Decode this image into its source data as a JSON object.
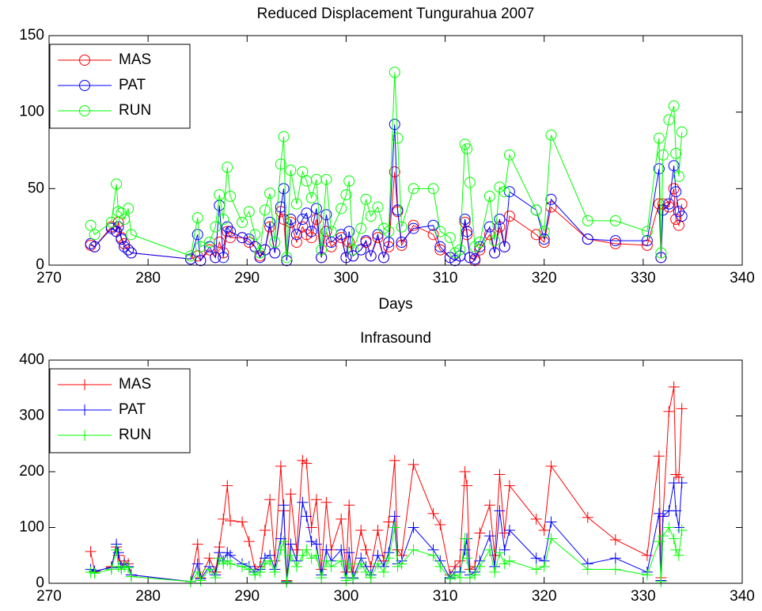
{
  "chart_data": [
    {
      "type": "line",
      "title": "Reduced Displacement Tungurahua 2007",
      "xlabel": "Days",
      "marker": "circle",
      "legend": "upper left",
      "xlim": [
        270,
        340
      ],
      "xticks": [
        270,
        280,
        290,
        300,
        310,
        320,
        330,
        340
      ],
      "ylim": [
        0,
        150
      ],
      "yticks": [
        0,
        50,
        100,
        150
      ],
      "x": [
        274.2,
        274.6,
        276.3,
        276.8,
        277.0,
        277.3,
        277.6,
        278.0,
        278.3,
        284.3,
        285.0,
        285.3,
        286.2,
        286.8,
        287.2,
        287.6,
        288.0,
        288.3,
        289.5,
        290.2,
        290.8,
        291.3,
        291.8,
        292.3,
        292.8,
        293.4,
        293.7,
        294.0,
        294.4,
        295.0,
        295.6,
        296.0,
        296.5,
        297.0,
        297.5,
        298.0,
        298.5,
        299.5,
        300.0,
        300.3,
        300.7,
        301.5,
        302.0,
        302.5,
        303.2,
        303.8,
        304.3,
        304.9,
        305.2,
        305.6,
        306.8,
        308.8,
        309.5,
        310.5,
        311.0,
        311.5,
        312.0,
        312.2,
        312.5,
        313.0,
        313.5,
        314.5,
        315.0,
        315.5,
        316.0,
        316.5,
        319.2,
        320.0,
        320.7,
        324.4,
        327.2,
        330.4,
        331.6,
        331.8,
        332.0,
        332.6,
        333.1,
        333.3,
        333.6,
        333.9
      ],
      "series": [
        {
          "name": "MAS",
          "color": "#ff0000",
          "values": [
            13,
            12,
            25,
            22,
            28,
            18,
            14,
            10,
            8,
            4,
            6,
            3,
            10,
            5,
            15,
            8,
            22,
            18,
            18,
            15,
            12,
            6,
            10,
            25,
            8,
            35,
            30,
            3,
            28,
            15,
            25,
            20,
            18,
            30,
            5,
            22,
            12,
            18,
            5,
            15,
            6,
            10,
            15,
            6,
            18,
            5,
            12,
            61,
            35,
            13,
            26,
            20,
            10,
            5,
            3,
            6,
            28,
            20,
            5,
            3,
            10,
            20,
            8,
            25,
            12,
            32,
            20,
            15,
            38,
            17,
            14,
            13,
            40,
            5,
            40,
            38,
            50,
            30,
            26,
            40
          ]
        },
        {
          "name": "PAT",
          "color": "#0000ff",
          "values": [
            14,
            12,
            24,
            22,
            25,
            17,
            12,
            10,
            8,
            4,
            20,
            3,
            12,
            5,
            39,
            5,
            25,
            22,
            18,
            17,
            12,
            5,
            10,
            28,
            8,
            38,
            50,
            3,
            30,
            20,
            30,
            34,
            22,
            37,
            5,
            33,
            15,
            20,
            5,
            22,
            6,
            10,
            16,
            6,
            20,
            5,
            15,
            92,
            36,
            15,
            24,
            26,
            12,
            5,
            3,
            6,
            30,
            22,
            5,
            4,
            12,
            25,
            8,
            30,
            12,
            48,
            36,
            17,
            43,
            17,
            16,
            16,
            63,
            5,
            36,
            40,
            65,
            48,
            35,
            32
          ]
        },
        {
          "name": "RUN",
          "color": "#00ff00",
          "values": [
            26,
            20,
            28,
            53,
            35,
            34,
            30,
            37,
            20,
            6,
            31,
            12,
            15,
            25,
            46,
            30,
            64,
            45,
            28,
            35,
            20,
            8,
            36,
            47,
            15,
            66,
            84,
            5,
            62,
            40,
            61,
            55,
            44,
            56,
            10,
            56,
            22,
            37,
            46,
            55,
            10,
            24,
            43,
            32,
            38,
            24,
            22,
            126,
            83,
            25,
            50,
            50,
            22,
            18,
            8,
            10,
            79,
            76,
            54,
            12,
            15,
            45,
            16,
            51,
            48,
            72,
            36,
            22,
            85,
            29,
            29,
            22,
            83,
            8,
            72,
            95,
            104,
            73,
            58,
            87
          ]
        }
      ]
    },
    {
      "type": "line",
      "title": "Infrasound",
      "marker": "plus",
      "legend": "upper left",
      "xlim": [
        270,
        340
      ],
      "xticks": [
        270,
        280,
        290,
        300,
        310,
        320,
        330,
        340
      ],
      "ylim": [
        0,
        400
      ],
      "yticks": [
        0,
        100,
        200,
        300,
        400
      ],
      "x": [
        274.2,
        274.6,
        276.3,
        276.8,
        277.0,
        277.3,
        277.6,
        278.0,
        278.3,
        284.3,
        285.0,
        285.3,
        286.2,
        286.8,
        287.2,
        287.6,
        288.0,
        288.3,
        289.5,
        290.2,
        290.8,
        291.3,
        291.8,
        292.3,
        292.8,
        293.4,
        293.7,
        294.0,
        294.4,
        295.0,
        295.6,
        296.0,
        296.5,
        297.0,
        297.5,
        298.0,
        298.5,
        299.5,
        300.0,
        300.3,
        300.7,
        301.5,
        302.0,
        302.5,
        303.2,
        303.8,
        304.3,
        304.9,
        305.2,
        305.6,
        306.8,
        308.8,
        309.5,
        310.5,
        311.0,
        311.5,
        312.0,
        312.2,
        312.5,
        313.0,
        313.5,
        314.5,
        315.0,
        315.5,
        316.0,
        316.5,
        319.2,
        320.0,
        320.7,
        324.4,
        327.2,
        330.4,
        331.6,
        331.8,
        332.0,
        332.6,
        333.1,
        333.3,
        333.6,
        333.9
      ],
      "series": [
        {
          "name": "MAS",
          "color": "#ff0000",
          "values": [
            57,
            20,
            30,
            65,
            50,
            30,
            40,
            35,
            15,
            3,
            70,
            10,
            45,
            20,
            65,
            115,
            175,
            112,
            110,
            75,
            25,
            30,
            95,
            150,
            40,
            210,
            130,
            5,
            160,
            60,
            220,
            215,
            100,
            150,
            25,
            145,
            60,
            115,
            20,
            140,
            20,
            95,
            60,
            30,
            95,
            40,
            110,
            220,
            60,
            50,
            213,
            125,
            105,
            15,
            30,
            40,
            200,
            175,
            25,
            30,
            90,
            140,
            50,
            195,
            90,
            175,
            115,
            95,
            210,
            118,
            78,
            50,
            228,
            10,
            120,
            308,
            352,
            195,
            190,
            313
          ]
        },
        {
          "name": "PAT",
          "color": "#0000ff",
          "values": [
            25,
            22,
            28,
            70,
            55,
            28,
            35,
            30,
            15,
            3,
            35,
            8,
            30,
            15,
            55,
            40,
            55,
            50,
            35,
            30,
            20,
            25,
            45,
            50,
            25,
            80,
            140,
            3,
            70,
            40,
            145,
            120,
            75,
            70,
            15,
            60,
            40,
            60,
            10,
            55,
            10,
            45,
            30,
            15,
            50,
            30,
            55,
            120,
            35,
            40,
            100,
            60,
            40,
            10,
            20,
            20,
            60,
            80,
            15,
            20,
            40,
            85,
            30,
            130,
            60,
            95,
            45,
            40,
            110,
            35,
            45,
            20,
            125,
            5,
            120,
            130,
            180,
            130,
            100,
            180
          ]
        },
        {
          "name": "RUN",
          "color": "#00ff00",
          "values": [
            20,
            18,
            25,
            60,
            30,
            25,
            30,
            28,
            12,
            3,
            20,
            5,
            25,
            10,
            45,
            35,
            40,
            35,
            30,
            25,
            15,
            20,
            35,
            40,
            20,
            60,
            75,
            2,
            50,
            30,
            50,
            60,
            45,
            50,
            10,
            40,
            30,
            40,
            5,
            35,
            8,
            35,
            20,
            10,
            35,
            20,
            45,
            100,
            30,
            35,
            60,
            50,
            30,
            8,
            15,
            10,
            80,
            45,
            10,
            15,
            30,
            60,
            20,
            55,
            35,
            40,
            25,
            30,
            80,
            25,
            25,
            15,
            75,
            3,
            85,
            100,
            80,
            60,
            50,
            95
          ]
        }
      ]
    }
  ]
}
